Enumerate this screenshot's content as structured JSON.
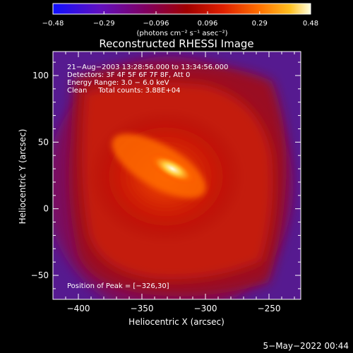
{
  "chart_data": {
    "type": "heatmap",
    "title": "Reconstructed RHESSI Image",
    "xlabel": "Heliocentric X (arcsec)",
    "ylabel": "Heliocentric Y (arcsec)",
    "xlim": [
      -420,
      -225
    ],
    "ylim": [
      -68,
      118
    ],
    "xticks": [
      -400,
      -350,
      -300,
      -250
    ],
    "yticks": [
      100,
      50,
      0,
      -50
    ],
    "xtick_labels": [
      "−400",
      "−350",
      "−300",
      "−250"
    ],
    "ytick_labels": [
      "100",
      "50",
      "0",
      "−50"
    ],
    "colorbar": {
      "range": [
        -0.48,
        0.48
      ],
      "ticks": [
        -0.48,
        -0.29,
        -0.096,
        0.096,
        0.29,
        0.48
      ],
      "tick_labels": [
        "−0.48",
        "−0.29",
        "−0.096",
        "0.096",
        "0.29",
        "0.48"
      ],
      "unit_label": "(photons cm⁻² s⁻¹ asec⁻²)",
      "colors": [
        "#1010ff",
        "#6010c0",
        "#800060",
        "#a00000",
        "#e02000",
        "#ff7000",
        "#ffc020",
        "#ffffe0"
      ]
    },
    "annotations": [
      "21−Aug−2003 13:28:56.000 to 13:34:56.000",
      "Detectors: 3F 4F 5F 6F 7F 8F, Att 0",
      "Energy Range: 3.0 − 6.0 keV",
      "Clean     Total counts: 3.88E+04"
    ],
    "peak_label": "Position of Peak = [−326,30]",
    "peak": {
      "x": -326,
      "y": 30,
      "value": 0.48
    }
  },
  "footer": {
    "date": "5−May−2022 00:44"
  }
}
